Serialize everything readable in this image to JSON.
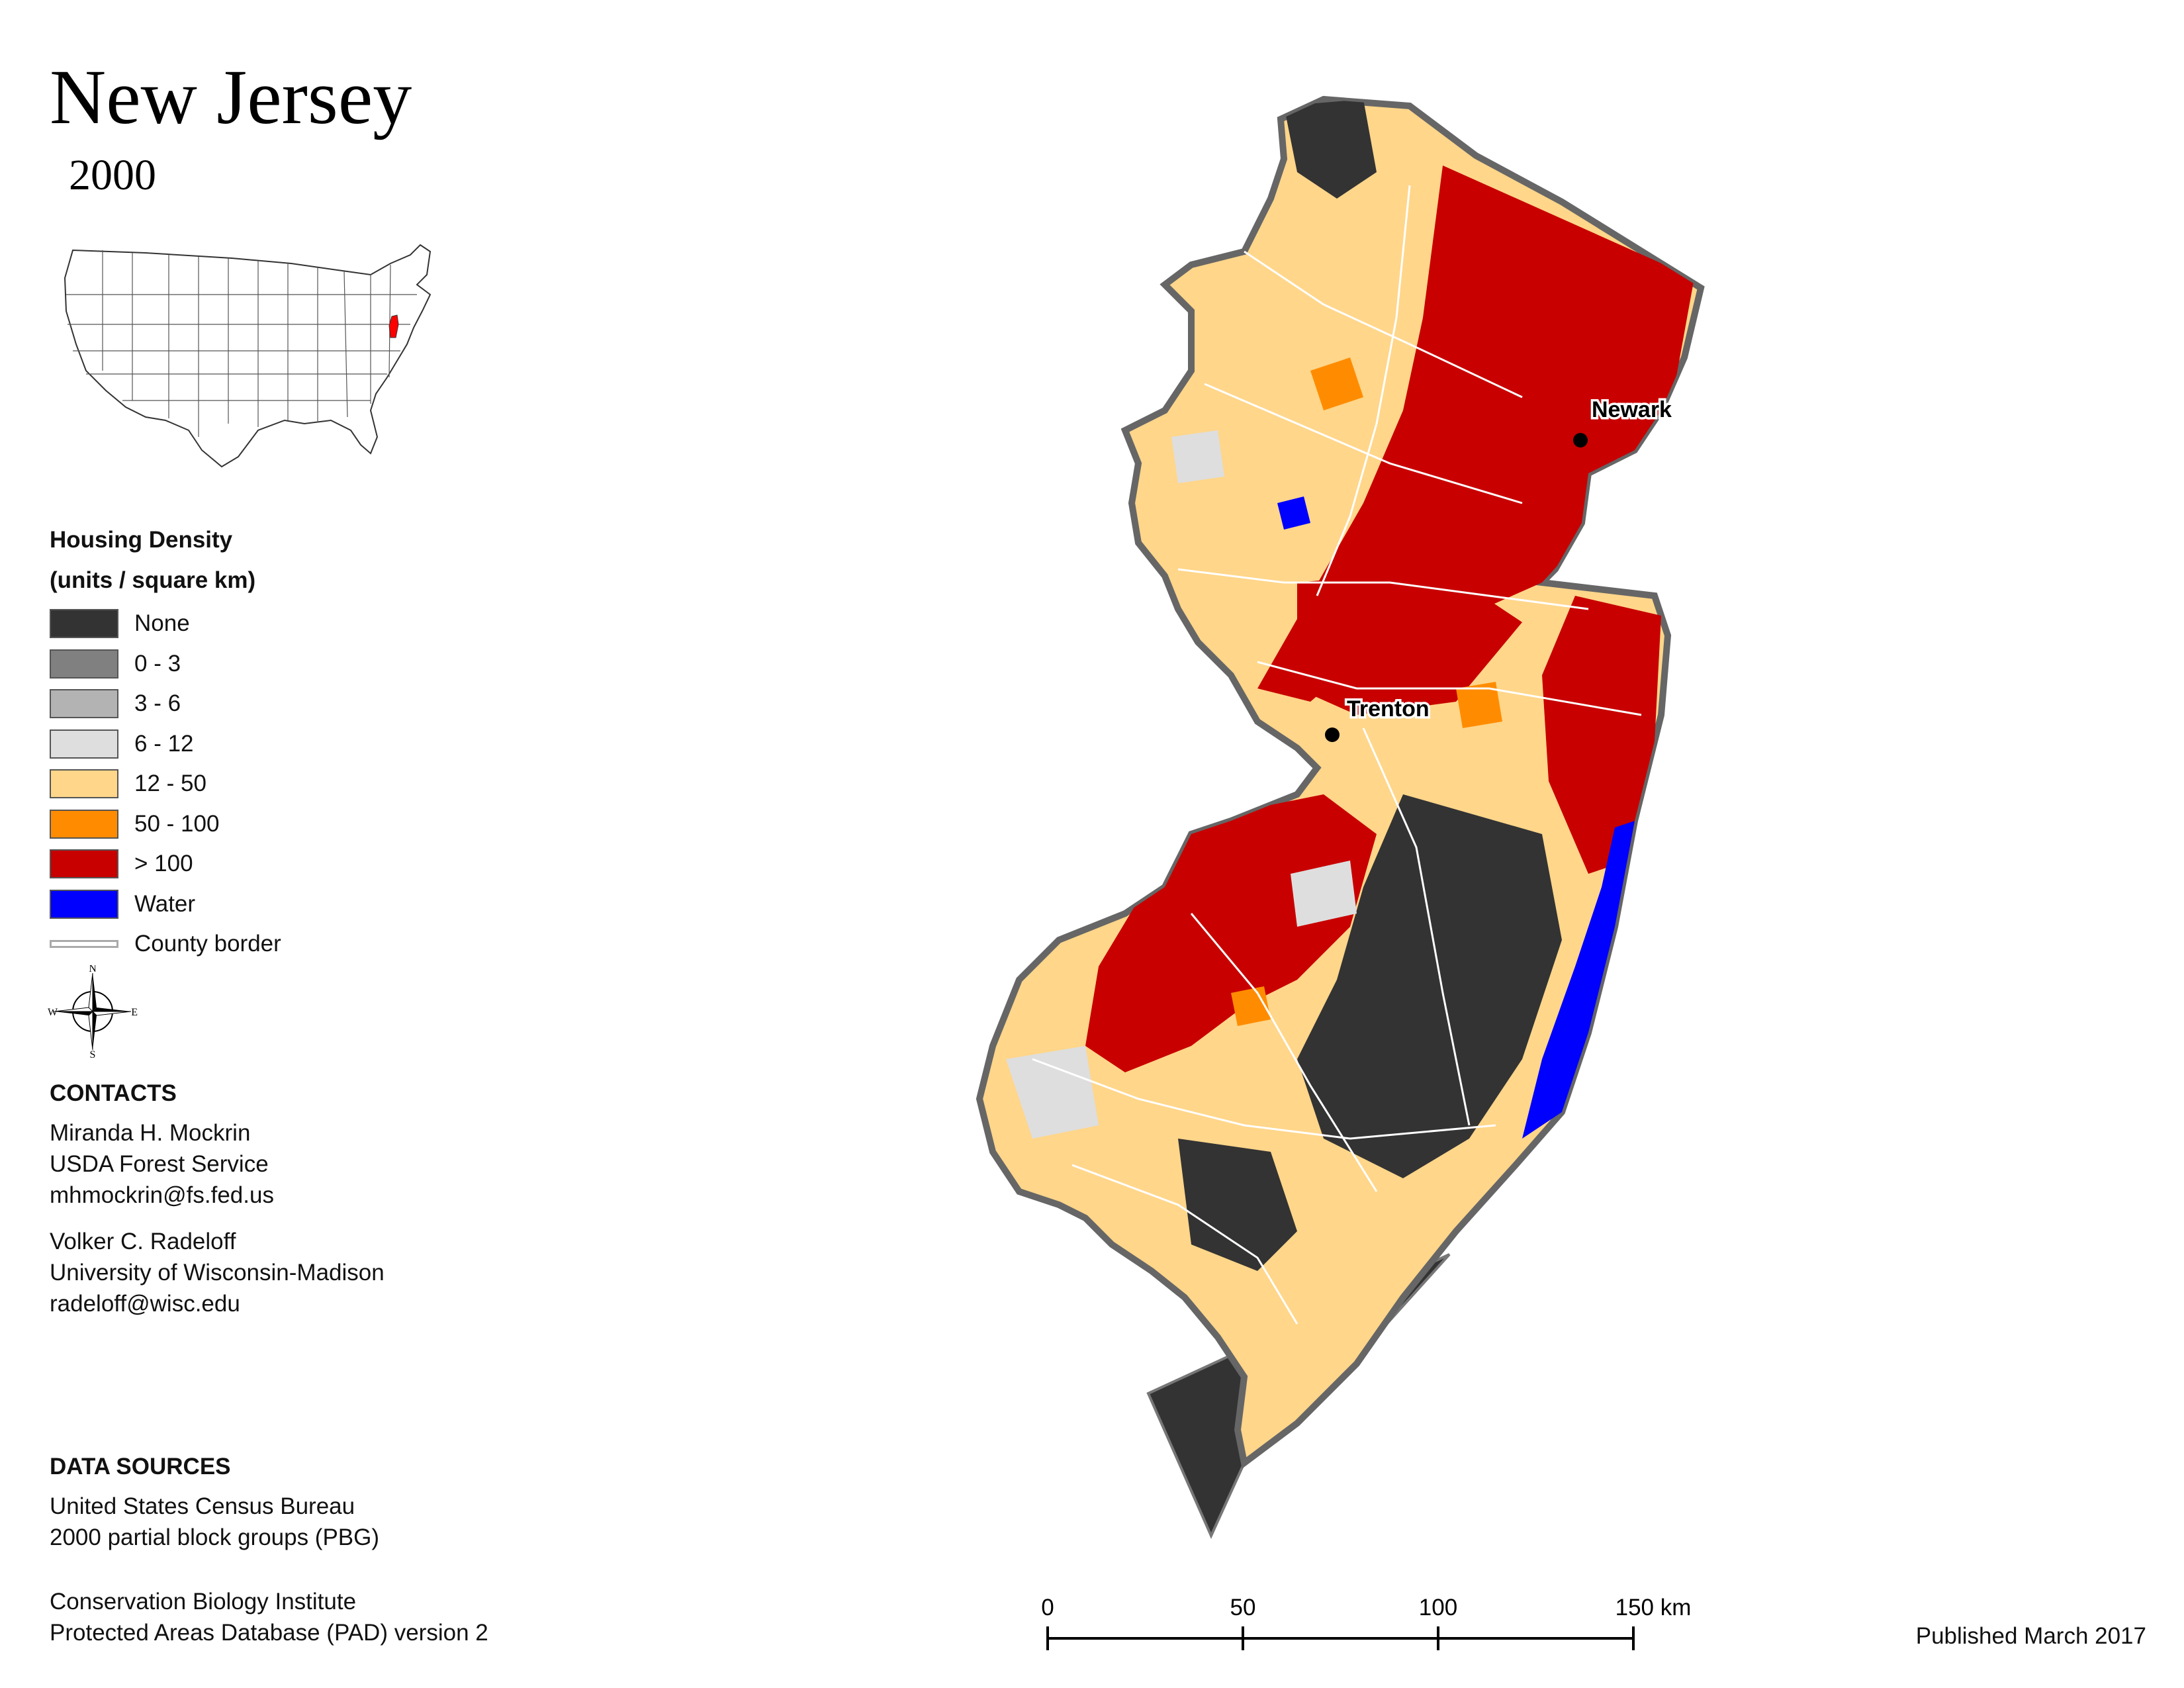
{
  "title": "New Jersey",
  "year": "2000",
  "legend": {
    "title_line1": "Housing Density",
    "title_line2": "(units / square km)",
    "items": [
      {
        "label": "None",
        "color": "#333333"
      },
      {
        "label": "0 - 3",
        "color": "#808080"
      },
      {
        "label": "3 - 6",
        "color": "#b3b3b3"
      },
      {
        "label": "6 - 12",
        "color": "#dedede"
      },
      {
        "label": "12 - 50",
        "color": "#ffd68a"
      },
      {
        "label": "50 - 100",
        "color": "#ff8c00"
      },
      {
        "label": "> 100",
        "color": "#c80000"
      },
      {
        "label": "Water",
        "color": "#0000ff"
      },
      {
        "label": "County border",
        "color": "#cccccc"
      }
    ]
  },
  "compass": {
    "n": "N",
    "s": "S",
    "e": "E",
    "w": "W"
  },
  "contacts": {
    "heading": "CONTACTS",
    "person1": {
      "name": "Miranda H. Mockrin",
      "org": "USDA Forest Service",
      "email": "mhmockrin@fs.fed.us"
    },
    "person2": {
      "name": "Volker C. Radeloff",
      "org": "University of Wisconsin-Madison",
      "email": "radeloff@wisc.edu"
    }
  },
  "data_sources": {
    "heading": "DATA SOURCES",
    "source1_line1": "United States Census Bureau",
    "source1_line2": "2000 partial block groups (PBG)",
    "source2_line1": "Conservation Biology Institute",
    "source2_line2": "Protected Areas Database (PAD) version 2"
  },
  "cities": {
    "newark": "Newark",
    "trenton": "Trenton"
  },
  "scale_bar": {
    "labels": [
      "0",
      "50",
      "100",
      "150 km"
    ]
  },
  "published": "Published March 2017"
}
